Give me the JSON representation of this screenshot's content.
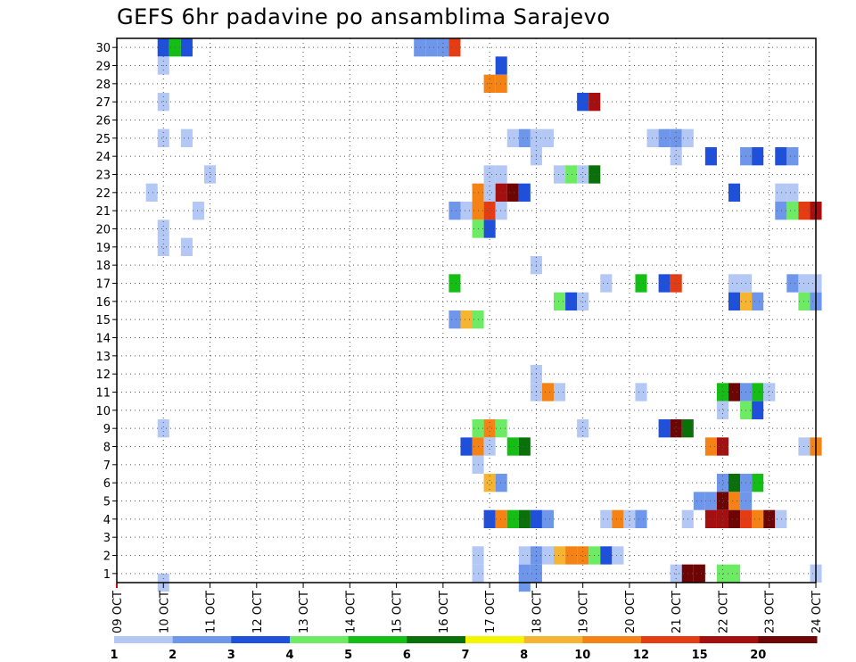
{
  "chart_data": {
    "type": "heatmap",
    "title": "GEFS 6hr padavine po ansamblima Sarajevo",
    "xlabel": "",
    "ylabel": "",
    "x_ticks": [
      "09 OCT",
      "10 OCT",
      "11 OCT",
      "12 OCT",
      "13 OCT",
      "14 OCT",
      "15 OCT",
      "16 OCT",
      "17 OCT",
      "18 OCT",
      "19 OCT",
      "20 OCT",
      "21 OCT",
      "22 OCT",
      "23 OCT",
      "24 OCT"
    ],
    "y_ticks": [
      "1",
      "2",
      "3",
      "4",
      "5",
      "6",
      "7",
      "8",
      "9",
      "10",
      "11",
      "12",
      "13",
      "14",
      "15",
      "16",
      "17",
      "18",
      "19",
      "20",
      "21",
      "22",
      "23",
      "24",
      "25",
      "26",
      "27",
      "28",
      "29",
      "30"
    ],
    "xlim": [
      0,
      60
    ],
    "ylim": [
      0.5,
      30.5
    ],
    "grid": true,
    "x_unit": "6-hour steps from 09 OCT 00Z",
    "colorbar": {
      "labels": [
        "1",
        "2",
        "3",
        "4",
        "5",
        "6",
        "7",
        "8",
        "10",
        "12",
        "15",
        "20"
      ],
      "colors": [
        "#b4c8f5",
        "#6e96eb",
        "#1e50dc",
        "#6eeb64",
        "#14be14",
        "#0a700a",
        "#f5f500",
        "#f5b432",
        "#f58214",
        "#e63c14",
        "#a50f0f",
        "#6e0505"
      ]
    },
    "cells": [
      [
        4,
        30,
        3
      ],
      [
        5,
        30,
        5
      ],
      [
        6,
        30,
        3
      ],
      [
        26,
        30,
        2
      ],
      [
        27,
        30,
        2
      ],
      [
        28,
        30,
        2
      ],
      [
        29,
        30,
        12
      ],
      [
        4,
        29,
        1
      ],
      [
        33,
        29,
        3
      ],
      [
        32,
        28,
        10
      ],
      [
        33,
        28,
        10
      ],
      [
        4,
        27,
        1
      ],
      [
        40,
        27,
        3
      ],
      [
        41,
        27,
        15
      ],
      [
        4,
        25,
        1
      ],
      [
        6,
        25,
        1
      ],
      [
        34,
        25,
        1
      ],
      [
        35,
        25,
        2
      ],
      [
        36,
        25,
        1
      ],
      [
        37,
        25,
        1
      ],
      [
        46,
        25,
        1
      ],
      [
        47,
        25,
        2
      ],
      [
        48,
        25,
        2
      ],
      [
        49,
        25,
        1
      ],
      [
        36,
        24,
        1
      ],
      [
        48,
        24,
        1
      ],
      [
        51,
        24,
        3
      ],
      [
        54,
        24,
        2
      ],
      [
        55,
        24,
        3
      ],
      [
        57,
        24,
        3
      ],
      [
        58,
        24,
        2
      ],
      [
        8,
        23,
        1
      ],
      [
        32,
        23,
        1
      ],
      [
        33,
        23,
        1
      ],
      [
        38,
        23,
        1
      ],
      [
        39,
        23,
        4
      ],
      [
        40,
        23,
        1
      ],
      [
        41,
        23,
        6
      ],
      [
        3,
        22,
        1
      ],
      [
        31,
        22,
        10
      ],
      [
        32,
        22,
        1
      ],
      [
        33,
        22,
        15
      ],
      [
        34,
        22,
        20
      ],
      [
        35,
        22,
        3
      ],
      [
        53,
        22,
        3
      ],
      [
        57,
        22,
        1
      ],
      [
        58,
        22,
        1
      ],
      [
        7,
        21,
        1
      ],
      [
        29,
        21,
        2
      ],
      [
        30,
        21,
        1
      ],
      [
        31,
        21,
        10
      ],
      [
        32,
        21,
        12
      ],
      [
        33,
        21,
        1
      ],
      [
        57,
        21,
        2
      ],
      [
        58,
        21,
        4
      ],
      [
        59,
        21,
        12
      ],
      [
        60,
        21,
        15
      ],
      [
        4,
        20,
        1
      ],
      [
        31,
        20,
        4
      ],
      [
        32,
        20,
        3
      ],
      [
        4,
        19,
        1
      ],
      [
        6,
        19,
        1
      ],
      [
        36,
        18,
        1
      ],
      [
        29,
        17,
        5
      ],
      [
        42,
        17,
        1
      ],
      [
        45,
        17,
        5
      ],
      [
        47,
        17,
        3
      ],
      [
        48,
        17,
        12
      ],
      [
        53,
        17,
        1
      ],
      [
        54,
        17,
        1
      ],
      [
        58,
        17,
        2
      ],
      [
        59,
        17,
        1
      ],
      [
        60,
        17,
        1
      ],
      [
        38,
        16,
        4
      ],
      [
        39,
        16,
        3
      ],
      [
        40,
        16,
        1
      ],
      [
        53,
        16,
        3
      ],
      [
        54,
        16,
        8
      ],
      [
        55,
        16,
        2
      ],
      [
        59,
        16,
        4
      ],
      [
        60,
        16,
        2
      ],
      [
        29,
        15,
        2
      ],
      [
        30,
        15,
        8
      ],
      [
        31,
        15,
        4
      ],
      [
        36,
        12,
        1
      ],
      [
        36,
        11,
        1
      ],
      [
        37,
        11,
        10
      ],
      [
        38,
        11,
        1
      ],
      [
        45,
        11,
        1
      ],
      [
        52,
        11,
        5
      ],
      [
        53,
        11,
        20
      ],
      [
        54,
        11,
        2
      ],
      [
        55,
        11,
        5
      ],
      [
        56,
        11,
        1
      ],
      [
        52,
        10,
        1
      ],
      [
        54,
        10,
        4
      ],
      [
        55,
        10,
        3
      ],
      [
        4,
        9,
        1
      ],
      [
        31,
        9,
        4
      ],
      [
        32,
        9,
        10
      ],
      [
        33,
        9,
        4
      ],
      [
        40,
        9,
        1
      ],
      [
        47,
        9,
        3
      ],
      [
        48,
        9,
        20
      ],
      [
        49,
        9,
        6
      ],
      [
        30,
        8,
        3
      ],
      [
        31,
        8,
        10
      ],
      [
        32,
        8,
        1
      ],
      [
        34,
        8,
        5
      ],
      [
        35,
        8,
        6
      ],
      [
        51,
        8,
        10
      ],
      [
        52,
        8,
        15
      ],
      [
        59,
        8,
        1
      ],
      [
        60,
        8,
        10
      ],
      [
        31,
        7,
        1
      ],
      [
        32,
        6,
        8
      ],
      [
        33,
        6,
        2
      ],
      [
        52,
        6,
        2
      ],
      [
        53,
        6,
        6
      ],
      [
        54,
        6,
        2
      ],
      [
        55,
        6,
        5
      ],
      [
        50,
        5,
        2
      ],
      [
        51,
        5,
        2
      ],
      [
        52,
        5,
        20
      ],
      [
        53,
        5,
        10
      ],
      [
        54,
        5,
        2
      ],
      [
        32,
        4,
        3
      ],
      [
        33,
        4,
        10
      ],
      [
        34,
        4,
        5
      ],
      [
        35,
        4,
        6
      ],
      [
        36,
        4,
        3
      ],
      [
        37,
        4,
        2
      ],
      [
        42,
        4,
        1
      ],
      [
        43,
        4,
        10
      ],
      [
        44,
        4,
        1
      ],
      [
        45,
        4,
        2
      ],
      [
        49,
        4,
        1
      ],
      [
        51,
        4,
        15
      ],
      [
        52,
        4,
        15
      ],
      [
        53,
        4,
        20
      ],
      [
        54,
        4,
        12
      ],
      [
        55,
        4,
        10
      ],
      [
        56,
        4,
        20
      ],
      [
        57,
        4,
        1
      ],
      [
        31,
        2,
        1
      ],
      [
        35,
        2,
        1
      ],
      [
        36,
        2,
        2
      ],
      [
        37,
        2,
        1
      ],
      [
        38,
        2,
        8
      ],
      [
        39,
        2,
        10
      ],
      [
        40,
        2,
        10
      ],
      [
        41,
        2,
        4
      ],
      [
        42,
        2,
        3
      ],
      [
        43,
        2,
        1
      ],
      [
        31,
        1,
        1
      ],
      [
        35,
        1,
        2
      ],
      [
        36,
        1,
        2
      ],
      [
        48,
        1,
        1
      ],
      [
        49,
        1,
        20
      ],
      [
        50,
        1,
        20
      ],
      [
        52,
        1,
        4
      ],
      [
        53,
        1,
        4
      ],
      [
        60,
        1,
        1
      ],
      [
        35,
        0.5,
        2
      ],
      [
        4,
        0.5,
        1
      ]
    ]
  }
}
